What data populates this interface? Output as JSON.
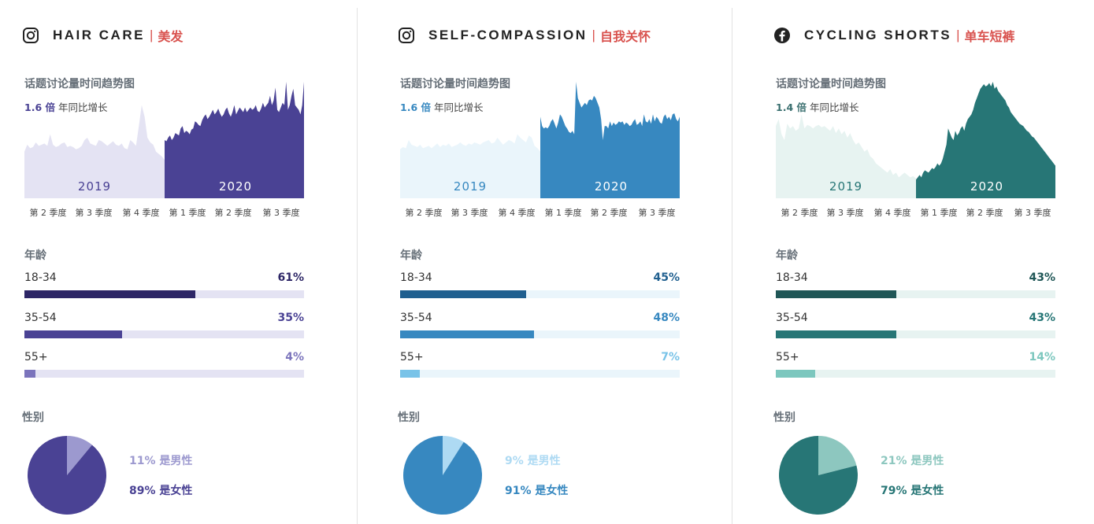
{
  "common": {
    "trend_title": "话题讨论量时间趋势图",
    "growth_suffix": "年同比增长",
    "year_2019": "2019",
    "year_2020": "2020",
    "quarters": [
      "第 2 季度",
      "第 3 季度",
      "第 4 季度",
      "第 1 季度",
      "第 2 季度",
      "第 3 季度"
    ],
    "age_title": "年龄",
    "gender_title": "性别",
    "separator": "|"
  },
  "panels": [
    {
      "platform_icon": "instagram-icon",
      "topic_en": "HAIR CARE",
      "topic_cn": "美发",
      "growth_value": "1.6 倍",
      "colors": {
        "dark": "#2d2666",
        "main": "#4a4294",
        "light": "#e4e3f3",
        "accent": "#7b74bc",
        "pie_minor": "#9c99cf",
        "growth": "#4a4294"
      },
      "chart_data": {
        "type": "area",
        "trend_2019": [
          0.4,
          0.46,
          0.43,
          0.44,
          0.48,
          0.45,
          0.46,
          0.47,
          0.45,
          0.55,
          0.46,
          0.44,
          0.45,
          0.47,
          0.48,
          0.44,
          0.45,
          0.44,
          0.42,
          0.43,
          0.45,
          0.5,
          0.52,
          0.47,
          0.46,
          0.45,
          0.5,
          0.49,
          0.47,
          0.45,
          0.47,
          0.49,
          0.46,
          0.45,
          0.47,
          0.43,
          0.42,
          0.5,
          0.48,
          0.45,
          0.62,
          0.8,
          0.7,
          0.52,
          0.48,
          0.46,
          0.4,
          0.38,
          0.36,
          0.33
        ],
        "trend_2020": [
          0.5,
          0.49,
          0.52,
          0.54,
          0.5,
          0.52,
          0.56,
          0.55,
          0.54,
          0.6,
          0.62,
          0.56,
          0.58,
          0.57,
          0.55,
          0.59,
          0.6,
          0.66,
          0.65,
          0.63,
          0.62,
          0.67,
          0.7,
          0.72,
          0.68,
          0.7,
          0.73,
          0.76,
          0.72,
          0.74,
          0.77,
          0.73,
          0.7,
          0.72,
          0.76,
          0.78,
          0.73,
          0.7,
          0.74,
          0.8,
          0.72,
          0.75,
          0.78,
          0.76,
          0.74,
          0.78,
          0.74,
          0.76,
          0.78,
          0.76,
          0.77,
          0.8,
          0.75,
          0.74,
          0.77,
          0.82,
          0.78,
          0.8,
          0.82,
          0.88,
          0.8,
          0.84,
          0.95,
          0.76,
          0.74,
          0.78,
          0.82,
          0.8,
          1.0,
          0.76,
          0.8,
          0.88,
          0.94,
          0.8,
          0.78,
          0.76,
          0.72,
          0.8,
          1.0
        ],
        "age": [
          {
            "label": "18-34",
            "value": 61,
            "display": "61%"
          },
          {
            "label": "35-54",
            "value": 35,
            "display": "35%"
          },
          {
            "label": "55+",
            "value": 4,
            "display": "4%"
          }
        ],
        "gender": {
          "male": 11,
          "female": 89,
          "male_label": "11% 是男性",
          "female_label": "89% 是女性"
        }
      }
    },
    {
      "platform_icon": "instagram-icon",
      "topic_en": "SELF-COMPASSION",
      "topic_cn": "自我关怀",
      "growth_value": "1.6 倍",
      "colors": {
        "dark": "#1f5f8f",
        "main": "#3788c0",
        "light": "#eaf5fb",
        "accent": "#79c3e8",
        "pie_minor": "#aedaf3",
        "growth": "#3788c0"
      },
      "chart_data": {
        "type": "area",
        "trend_2019": [
          0.42,
          0.44,
          0.43,
          0.5,
          0.46,
          0.45,
          0.44,
          0.46,
          0.43,
          0.44,
          0.45,
          0.43,
          0.45,
          0.47,
          0.44,
          0.46,
          0.45,
          0.47,
          0.44,
          0.45,
          0.46,
          0.48,
          0.46,
          0.45,
          0.47,
          0.46,
          0.48,
          0.47,
          0.46,
          0.48,
          0.49,
          0.5,
          0.47,
          0.48,
          0.52,
          0.49,
          0.46,
          0.48,
          0.5,
          0.49,
          0.47,
          0.55,
          0.52,
          0.5,
          0.48,
          0.54,
          0.52,
          0.45,
          0.43,
          0.4
        ],
        "trend_2020": [
          0.7,
          0.62,
          0.6,
          0.61,
          0.6,
          0.62,
          0.66,
          0.68,
          0.64,
          0.6,
          0.65,
          0.72,
          0.7,
          0.66,
          0.62,
          0.6,
          0.57,
          0.56,
          0.58,
          0.55,
          1.0,
          0.86,
          0.82,
          0.78,
          0.8,
          0.82,
          0.8,
          0.84,
          0.85,
          0.84,
          0.88,
          0.86,
          0.82,
          0.78,
          0.68,
          0.5,
          0.62,
          0.62,
          0.6,
          0.66,
          0.62,
          0.65,
          0.63,
          0.64,
          0.66,
          0.65,
          0.66,
          0.63,
          0.65,
          0.64,
          0.62,
          0.63,
          0.66,
          0.68,
          0.63,
          0.64,
          0.66,
          0.62,
          0.72,
          0.66,
          0.65,
          0.68,
          0.64,
          0.72,
          0.66,
          0.7,
          0.68,
          0.65,
          0.64,
          0.7,
          0.72,
          0.68,
          0.7,
          0.67,
          0.72,
          0.73,
          0.68,
          0.66,
          0.7
        ],
        "age": [
          {
            "label": "18-34",
            "value": 45,
            "display": "45%"
          },
          {
            "label": "35-54",
            "value": 48,
            "display": "48%"
          },
          {
            "label": "55+",
            "value": 7,
            "display": "7%"
          }
        ],
        "gender": {
          "male": 9,
          "female": 91,
          "male_label": "9% 是男性",
          "female_label": "91% 是女性"
        }
      }
    },
    {
      "platform_icon": "facebook-icon",
      "topic_en": "CYCLING SHORTS",
      "topic_cn": "单车短裤",
      "growth_value": "1.4 倍",
      "colors": {
        "dark": "#1f5656",
        "main": "#277676",
        "light": "#e7f3f1",
        "accent": "#7cc7be",
        "pie_minor": "#8dc7bf",
        "growth": "#3a6f6f"
      },
      "chart_data": {
        "type": "area",
        "trend_2019": [
          0.62,
          0.68,
          0.55,
          0.5,
          0.64,
          0.6,
          0.62,
          0.58,
          0.6,
          0.72,
          0.6,
          0.63,
          0.62,
          0.6,
          0.62,
          0.63,
          0.61,
          0.62,
          0.6,
          0.58,
          0.62,
          0.56,
          0.6,
          0.55,
          0.58,
          0.52,
          0.56,
          0.5,
          0.46,
          0.48,
          0.44,
          0.4,
          0.42,
          0.36,
          0.34,
          0.3,
          0.28,
          0.26,
          0.24,
          0.22,
          0.25,
          0.2,
          0.22,
          0.18,
          0.2,
          0.22,
          0.2,
          0.18,
          0.19,
          0.17
        ],
        "trend_2020": [
          0.16,
          0.18,
          0.2,
          0.18,
          0.22,
          0.24,
          0.23,
          0.22,
          0.24,
          0.26,
          0.25,
          0.27,
          0.3,
          0.28,
          0.3,
          0.34,
          0.4,
          0.46,
          0.6,
          0.56,
          0.52,
          0.5,
          0.58,
          0.54,
          0.56,
          0.6,
          0.62,
          0.58,
          0.64,
          0.68,
          0.7,
          0.72,
          0.76,
          0.82,
          0.86,
          0.9,
          0.94,
          0.96,
          0.98,
          0.96,
          0.97,
          0.99,
          0.96,
          1.0,
          0.94,
          0.96,
          0.92,
          0.9,
          0.88,
          0.86,
          0.84,
          0.8,
          0.78,
          0.74,
          0.72,
          0.7,
          0.68,
          0.66,
          0.64,
          0.63,
          0.62,
          0.6,
          0.58,
          0.57,
          0.55,
          0.53,
          0.52,
          0.5,
          0.48,
          0.46,
          0.44,
          0.42,
          0.4,
          0.38,
          0.36,
          0.34,
          0.32,
          0.3,
          0.28
        ],
        "age": [
          {
            "label": "18-34",
            "value": 43,
            "display": "43%"
          },
          {
            "label": "35-54",
            "value": 43,
            "display": "43%"
          },
          {
            "label": "55+",
            "value": 14,
            "display": "14%"
          }
        ],
        "gender": {
          "male": 21,
          "female": 79,
          "male_label": "21% 是男性",
          "female_label": "79% 是女性"
        }
      }
    }
  ]
}
